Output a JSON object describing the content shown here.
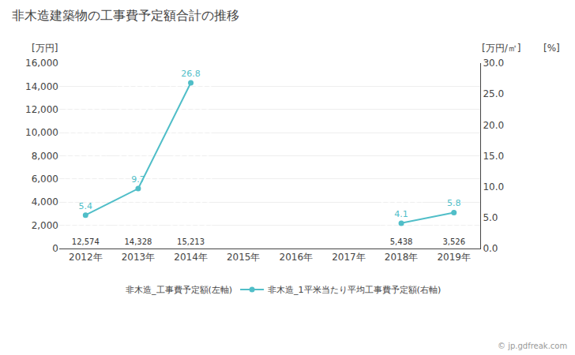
{
  "chart_data": {
    "type": "bar",
    "title": "非木造建築物の工事費予定額合計の推移",
    "categories": [
      "2012年",
      "2013年",
      "2014年",
      "2015年",
      "2016年",
      "2017年",
      "2018年",
      "2019年"
    ],
    "series": [
      {
        "name": "非木造_工事費予定額(左軸)",
        "type": "bar",
        "color": "#f5a32a",
        "values": [
          12574,
          14328,
          15213,
          0,
          0,
          0,
          5438,
          3526
        ],
        "value_labels": [
          "12,574",
          "14,328",
          "15,213",
          null,
          null,
          null,
          "5,438",
          "3,526"
        ]
      },
      {
        "name": "非木造_1平米当たり平均工事費予定額(右軸)",
        "type": "line",
        "axis": "y2",
        "color": "#50bec8",
        "marker": "circle",
        "values": [
          5.4,
          9.7,
          26.8,
          null,
          null,
          null,
          4.1,
          5.8
        ]
      }
    ],
    "ylabel": "[万円]",
    "y2label": "[万円/㎡]",
    "annotations": [
      "[%]",
      "© jp.gdfreak.com"
    ],
    "ylim": [
      0,
      16000
    ],
    "yticks": [
      0,
      {
        "value": 2000,
        "label": "2,000"
      },
      {
        "value": 4000,
        "label": "4,000"
      },
      {
        "value": 6000,
        "label": "6,000"
      },
      {
        "value": 8000,
        "label": "8,000"
      },
      {
        "value": 10000,
        "label": "10,000"
      },
      {
        "value": 12000,
        "label": "12,000"
      },
      {
        "value": 14000,
        "label": "14,000"
      },
      {
        "value": 16000,
        "label": "16,000"
      }
    ],
    "y2lim": [
      0,
      30.0
    ],
    "y2ticks": [
      {
        "value": 0.0,
        "label": "0.0"
      },
      {
        "value": 5.0,
        "label": "5.0"
      },
      {
        "value": 10.0,
        "label": "10.0"
      },
      {
        "value": 15.0,
        "label": "15.0"
      },
      {
        "value": 20.0,
        "label": "20.0"
      },
      {
        "value": 25.0,
        "label": "25.0"
      },
      {
        "value": 30.0,
        "label": "30.0"
      }
    ],
    "grid": true,
    "legend": "bottom",
    "data_labels": true
  }
}
